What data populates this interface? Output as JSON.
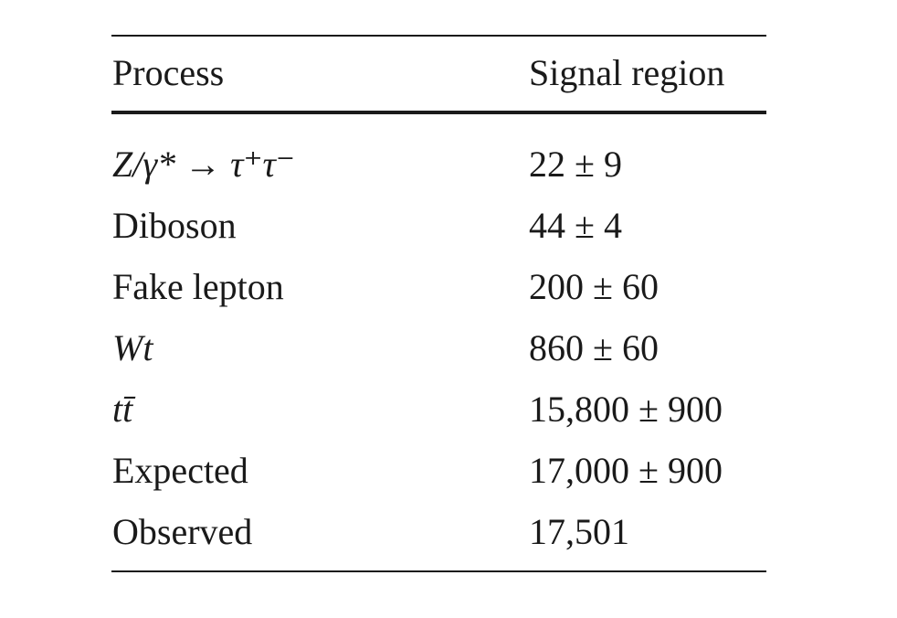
{
  "table": {
    "headers": {
      "process": "Process",
      "signal": "Signal region"
    },
    "rows": [
      {
        "process": "Z/γ* → τ⁺τ⁻",
        "signal": "22 ± 9",
        "math": true
      },
      {
        "process": "Diboson",
        "signal": "44 ± 4",
        "math": false
      },
      {
        "process": "Fake lepton",
        "signal": "200 ± 60",
        "math": false
      },
      {
        "process": "Wt",
        "signal": "860 ± 60",
        "math": true
      },
      {
        "process": "tt̄",
        "signal": "15,800 ± 900",
        "math": true
      },
      {
        "process": "Expected",
        "signal": "17,000 ± 900",
        "math": false
      },
      {
        "process": "Observed",
        "signal": "17,501",
        "math": false
      }
    ]
  }
}
